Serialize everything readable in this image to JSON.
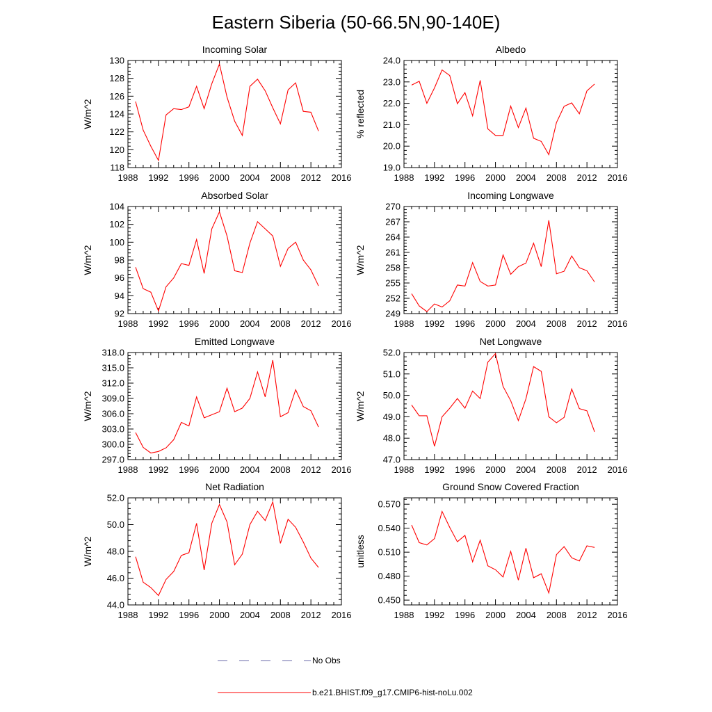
{
  "figure": {
    "title": "Eastern Siberia (50-66.5N,90-140E)",
    "legend": [
      {
        "label": "No Obs",
        "color": "#6a6aa8",
        "style": "dashed"
      },
      {
        "label": "b.e21.BHIST.f09_g17.CMIP6-hist-noLu.002",
        "color": "#ff0000",
        "style": "solid"
      }
    ]
  },
  "chart_data": [
    {
      "type": "line",
      "title": "Incoming Solar",
      "ylabel": "W/m^2",
      "xlim": [
        1988,
        2016
      ],
      "xticks": [
        1988,
        1992,
        1996,
        2000,
        2004,
        2008,
        2012,
        2016
      ],
      "ylim": [
        118,
        130
      ],
      "yticks": [
        118,
        120,
        122,
        124,
        126,
        128,
        130
      ],
      "ytick_decimals": 0,
      "series": [
        {
          "color": "#ff0000",
          "x": [
            1989,
            1990,
            1991,
            1992,
            1993,
            1994,
            1995,
            1996,
            1997,
            1998,
            1999,
            2000,
            2001,
            2002,
            2003,
            2004,
            2005,
            2006,
            2007,
            2008,
            2009,
            2010,
            2011,
            2012,
            2013
          ],
          "values": [
            125.4,
            122.2,
            120.4,
            118.8,
            123.9,
            124.6,
            124.5,
            124.8,
            127.1,
            124.6,
            127.4,
            129.6,
            125.9,
            123.2,
            121.6,
            127.1,
            127.9,
            126.6,
            124.7,
            122.9,
            126.7,
            127.5,
            124.3,
            124.2,
            122.1
          ]
        }
      ]
    },
    {
      "type": "line",
      "title": "Albedo",
      "ylabel": "% reflected",
      "xlim": [
        1988,
        2016
      ],
      "xticks": [
        1988,
        1992,
        1996,
        2000,
        2004,
        2008,
        2012,
        2016
      ],
      "ylim": [
        19.0,
        24.0
      ],
      "yticks": [
        19.0,
        20.0,
        21.0,
        22.0,
        23.0,
        24.0
      ],
      "ytick_decimals": 1,
      "series": [
        {
          "color": "#ff0000",
          "x": [
            1989,
            1990,
            1991,
            1992,
            1993,
            1994,
            1995,
            1996,
            1997,
            1998,
            1999,
            2000,
            2001,
            2002,
            2003,
            2004,
            2005,
            2006,
            2007,
            2008,
            2009,
            2010,
            2011,
            2012,
            2013
          ],
          "values": [
            22.85,
            23.03,
            22.0,
            22.72,
            23.56,
            23.3,
            21.98,
            22.5,
            21.42,
            23.07,
            20.81,
            20.5,
            20.5,
            21.87,
            20.87,
            21.78,
            20.37,
            20.22,
            19.6,
            21.1,
            21.86,
            22.02,
            21.51,
            22.58,
            22.9
          ]
        }
      ]
    },
    {
      "type": "line",
      "title": "Absorbed Solar",
      "ylabel": "W/m^2",
      "xlim": [
        1988,
        2016
      ],
      "xticks": [
        1988,
        1992,
        1996,
        2000,
        2004,
        2008,
        2012,
        2016
      ],
      "ylim": [
        92,
        104
      ],
      "yticks": [
        92,
        94,
        96,
        98,
        100,
        102,
        104
      ],
      "ytick_decimals": 0,
      "series": [
        {
          "color": "#ff0000",
          "x": [
            1989,
            1990,
            1991,
            1992,
            1993,
            1994,
            1995,
            1996,
            1997,
            1998,
            1999,
            2000,
            2001,
            2002,
            2003,
            2004,
            2005,
            2006,
            2007,
            2008,
            2009,
            2010,
            2011,
            2012,
            2013
          ],
          "values": [
            97.2,
            94.8,
            94.4,
            92.3,
            95.0,
            96.0,
            97.6,
            97.4,
            100.3,
            96.5,
            101.5,
            103.4,
            100.7,
            96.8,
            96.6,
            99.9,
            102.3,
            101.5,
            100.7,
            97.3,
            99.3,
            100.0,
            98.0,
            96.9,
            95.1
          ]
        }
      ]
    },
    {
      "type": "line",
      "title": "Incoming Longwave",
      "ylabel": "W/m^2",
      "xlim": [
        1988,
        2016
      ],
      "xticks": [
        1988,
        1992,
        1996,
        2000,
        2004,
        2008,
        2012,
        2016
      ],
      "ylim": [
        249,
        270
      ],
      "yticks": [
        249,
        252,
        255,
        258,
        261,
        264,
        267,
        270
      ],
      "ytick_decimals": 0,
      "series": [
        {
          "color": "#ff0000",
          "x": [
            1989,
            1990,
            1991,
            1992,
            1993,
            1994,
            1995,
            1996,
            1997,
            1998,
            1999,
            2000,
            2001,
            2002,
            2003,
            2004,
            2005,
            2006,
            2007,
            2008,
            2009,
            2010,
            2011,
            2012,
            2013
          ],
          "values": [
            252.9,
            250.5,
            249.4,
            250.9,
            250.3,
            251.5,
            254.6,
            254.4,
            259.0,
            255.3,
            254.4,
            254.6,
            260.5,
            256.7,
            258.2,
            258.9,
            262.8,
            258.2,
            267.3,
            256.8,
            257.3,
            260.3,
            258.0,
            257.4,
            255.2
          ]
        }
      ]
    },
    {
      "type": "line",
      "title": "Emitted Longwave",
      "ylabel": "W/m^2",
      "xlim": [
        1988,
        2016
      ],
      "xticks": [
        1988,
        1992,
        1996,
        2000,
        2004,
        2008,
        2012,
        2016
      ],
      "ylim": [
        297,
        318
      ],
      "yticks": [
        297,
        300,
        303,
        306,
        309,
        312,
        315,
        318
      ],
      "ytick_decimals": 1,
      "series": [
        {
          "color": "#ff0000",
          "x": [
            1989,
            1990,
            1991,
            1992,
            1993,
            1994,
            1995,
            1996,
            1997,
            1998,
            1999,
            2000,
            2001,
            2002,
            2003,
            2004,
            2005,
            2006,
            2007,
            2008,
            2009,
            2010,
            2011,
            2012,
            2013
          ],
          "values": [
            302.3,
            299.4,
            298.3,
            298.6,
            299.3,
            300.9,
            304.3,
            303.6,
            309.3,
            305.2,
            305.8,
            306.4,
            311.0,
            306.4,
            307.1,
            309.0,
            314.2,
            309.3,
            316.5,
            305.4,
            306.2,
            310.7,
            307.4,
            306.6,
            303.4
          ]
        }
      ]
    },
    {
      "type": "line",
      "title": "Net Longwave",
      "ylabel": "W/m^2",
      "xlim": [
        1988,
        2016
      ],
      "xticks": [
        1988,
        1992,
        1996,
        2000,
        2004,
        2008,
        2012,
        2016
      ],
      "ylim": [
        47.0,
        52.0
      ],
      "yticks": [
        47.0,
        48.0,
        49.0,
        50.0,
        51.0,
        52.0
      ],
      "ytick_decimals": 1,
      "series": [
        {
          "color": "#ff0000",
          "x": [
            1989,
            1990,
            1991,
            1992,
            1993,
            1994,
            1995,
            1996,
            1997,
            1998,
            1999,
            2000,
            2001,
            2002,
            2003,
            2004,
            2005,
            2006,
            2007,
            2008,
            2009,
            2010,
            2011,
            2012,
            2013
          ],
          "values": [
            49.55,
            49.05,
            49.05,
            47.62,
            49.0,
            49.4,
            49.85,
            49.4,
            50.2,
            49.85,
            51.55,
            51.95,
            50.42,
            49.75,
            48.82,
            49.84,
            51.34,
            51.12,
            49.0,
            48.72,
            48.97,
            50.3,
            49.38,
            49.28,
            48.3
          ]
        }
      ]
    },
    {
      "type": "line",
      "title": "Net Radiation",
      "ylabel": "W/m^2",
      "xlim": [
        1988,
        2016
      ],
      "xticks": [
        1988,
        1992,
        1996,
        2000,
        2004,
        2008,
        2012,
        2016
      ],
      "ylim": [
        44.0,
        52.0
      ],
      "yticks": [
        44.0,
        46.0,
        48.0,
        50.0,
        52.0
      ],
      "ytick_decimals": 1,
      "series": [
        {
          "color": "#ff0000",
          "x": [
            1989,
            1990,
            1991,
            1992,
            1993,
            1994,
            1995,
            1996,
            1997,
            1998,
            1999,
            2000,
            2001,
            2002,
            2003,
            2004,
            2005,
            2006,
            2007,
            2008,
            2009,
            2010,
            2011,
            2012,
            2013
          ],
          "values": [
            47.6,
            45.7,
            45.3,
            44.7,
            45.9,
            46.5,
            47.7,
            47.9,
            50.1,
            46.6,
            50.1,
            51.5,
            50.2,
            47.0,
            47.8,
            50.0,
            51.0,
            50.3,
            51.7,
            48.6,
            50.4,
            49.8,
            48.7,
            47.5,
            46.8
          ]
        }
      ]
    },
    {
      "type": "line",
      "title": "Ground Snow Covered Fraction",
      "ylabel": "unitless",
      "xlim": [
        1988,
        2016
      ],
      "xticks": [
        1988,
        1992,
        1996,
        2000,
        2004,
        2008,
        2012,
        2016
      ],
      "ylim": [
        0.444,
        0.578
      ],
      "yticks": [
        0.45,
        0.48,
        0.51,
        0.54,
        0.57
      ],
      "ytick_decimals": 3,
      "series": [
        {
          "color": "#ff0000",
          "x": [
            1989,
            1990,
            1991,
            1992,
            1993,
            1994,
            1995,
            1996,
            1997,
            1998,
            1999,
            2000,
            2001,
            2002,
            2003,
            2004,
            2005,
            2006,
            2007,
            2008,
            2009,
            2010,
            2011,
            2012,
            2013
          ],
          "values": [
            0.544,
            0.522,
            0.519,
            0.527,
            0.561,
            0.541,
            0.523,
            0.531,
            0.498,
            0.525,
            0.493,
            0.488,
            0.479,
            0.511,
            0.475,
            0.515,
            0.478,
            0.483,
            0.459,
            0.507,
            0.517,
            0.503,
            0.499,
            0.518,
            0.516
          ]
        }
      ]
    }
  ]
}
